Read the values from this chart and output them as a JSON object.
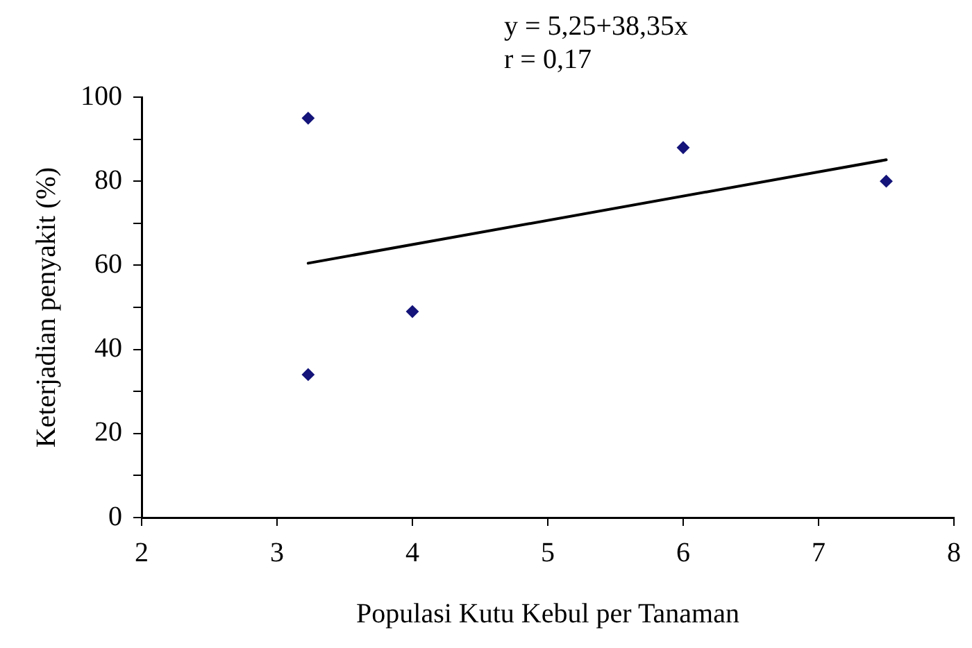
{
  "chart_data": {
    "type": "scatter",
    "xlabel": "Populasi Kutu Kebul per Tanaman",
    "ylabel": "Keterjadian penyakit (%)",
    "annotations": [
      "y = 5,25+38,35x",
      "r = 0,17"
    ],
    "series": [
      {
        "type": "scatter",
        "color": "#14147a",
        "marker": "diamond",
        "x": [
          3.23,
          3.23,
          4.0,
          6.0,
          7.5
        ],
        "values": [
          95,
          34,
          49,
          88,
          80
        ]
      },
      {
        "type": "line",
        "color": "#000000",
        "marker": "none",
        "line_style": "solid",
        "x": [
          3.23,
          7.5
        ],
        "values": [
          60.5,
          85.1
        ]
      }
    ],
    "xlim": [
      2,
      8
    ],
    "xticks": [
      2,
      3,
      4,
      5,
      6,
      7,
      8
    ],
    "ylim": [
      0,
      100
    ],
    "yticks": [
      0,
      {
        "value": 10,
        "label": null
      },
      20,
      {
        "value": 30,
        "label": null
      },
      40,
      {
        "value": 50,
        "label": null
      },
      60,
      {
        "value": 70,
        "label": null
      },
      80,
      {
        "value": 90,
        "label": null
      },
      100
    ],
    "grid": false,
    "legend": false
  }
}
